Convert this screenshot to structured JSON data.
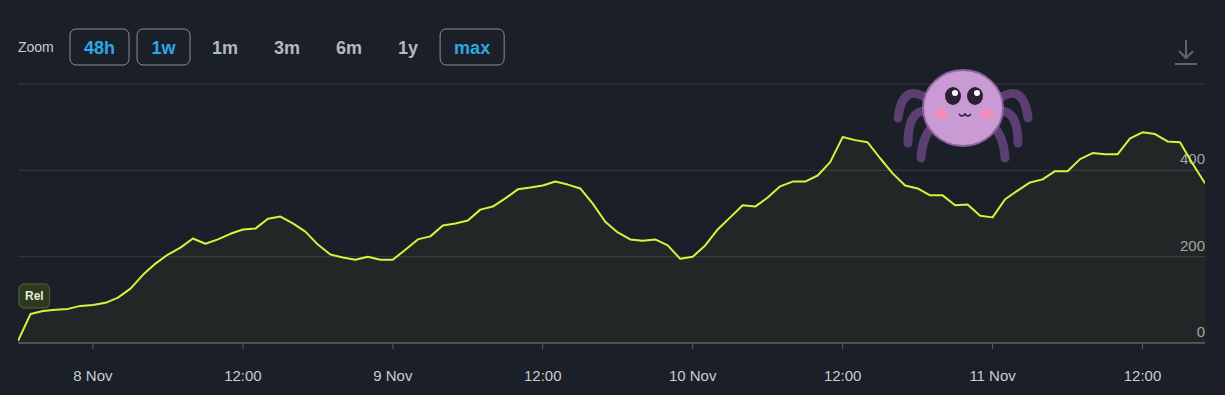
{
  "toolbar": {
    "label": "Zoom",
    "buttons": [
      {
        "label": "48h",
        "active": true
      },
      {
        "label": "1w",
        "active": true
      },
      {
        "label": "1m",
        "active": false
      },
      {
        "label": "3m",
        "active": false
      },
      {
        "label": "6m",
        "active": false
      },
      {
        "label": "1y",
        "active": false
      },
      {
        "label": "max",
        "active": true
      }
    ]
  },
  "chart_data": {
    "type": "line",
    "color": "#d4f53c",
    "grid": true,
    "x": [
      -6,
      -5,
      -4,
      -3,
      -2,
      -1,
      0,
      1,
      2,
      3,
      4,
      5,
      6,
      7,
      8,
      9,
      10,
      11,
      12,
      13,
      14,
      15,
      16,
      17,
      18,
      19,
      20,
      21,
      22,
      23,
      24,
      25,
      26,
      27,
      28,
      29,
      30,
      31,
      32,
      33,
      34,
      35,
      36,
      37,
      38,
      39,
      40,
      41,
      42,
      43,
      44,
      45,
      46,
      47,
      48,
      49,
      50,
      51,
      52,
      53,
      54,
      55,
      56,
      57,
      58,
      59,
      60,
      61,
      62,
      63,
      64,
      65,
      66,
      67,
      68,
      69,
      70,
      71,
      72,
      73,
      74,
      75,
      76,
      77,
      78,
      79,
      80,
      81,
      82,
      83,
      84,
      85,
      86,
      87,
      88,
      89
    ],
    "values": [
      5,
      67,
      74,
      77,
      79,
      86,
      88,
      93,
      105,
      126,
      158,
      184,
      205,
      221,
      242,
      230,
      240,
      253,
      263,
      265,
      288,
      293,
      277,
      258,
      228,
      205,
      198,
      193,
      200,
      193,
      193,
      216,
      240,
      247,
      272,
      277,
      284,
      309,
      316,
      335,
      356,
      360,
      365,
      374,
      367,
      358,
      323,
      281,
      256,
      240,
      237,
      240,
      226,
      195,
      200,
      226,
      263,
      291,
      319,
      316,
      337,
      363,
      374,
      374,
      388,
      419,
      477,
      470,
      465,
      428,
      393,
      365,
      358,
      342,
      342,
      319,
      321,
      295,
      291,
      333,
      353,
      372,
      379,
      398,
      398,
      426,
      440,
      437,
      437,
      474,
      488,
      484,
      467,
      465,
      416,
      370
    ],
    "xlim": [
      -6,
      89
    ],
    "xticks": [
      {
        "value": 0,
        "label": "8 Nov"
      },
      {
        "value": 12,
        "label": "12:00"
      },
      {
        "value": 24,
        "label": "9 Nov"
      },
      {
        "value": 36,
        "label": "12:00"
      },
      {
        "value": 48,
        "label": "10 Nov"
      },
      {
        "value": 60,
        "label": "12:00"
      },
      {
        "value": 72,
        "label": "11 Nov"
      },
      {
        "value": 84,
        "label": "12:00"
      }
    ],
    "ylim": [
      0,
      600
    ],
    "yticks": [
      0,
      200,
      400
    ],
    "annotations": [
      {
        "text": "Rel",
        "x": -6,
        "y": 109
      }
    ]
  }
}
